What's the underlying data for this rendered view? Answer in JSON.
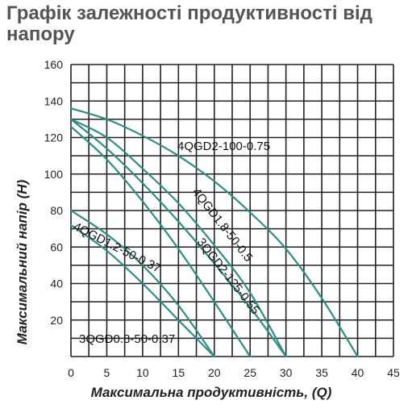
{
  "chart_data": {
    "type": "line",
    "title": "Графік залежності продуктивності від напору",
    "xlabel": "Максимальна продуктивність, (Q)",
    "ylabel": "Максимальний напір (Н)",
    "xlim": [
      0,
      45
    ],
    "ylim": [
      0,
      160
    ],
    "xticks": [
      0,
      5,
      10,
      15,
      20,
      25,
      30,
      35,
      40,
      45
    ],
    "yticks": [
      20,
      40,
      60,
      80,
      100,
      120,
      140,
      160
    ],
    "grid": true,
    "colors": {
      "curve": "#2a8f85",
      "grid": "#222222",
      "title": "#555555"
    },
    "series": [
      {
        "name": "4QGD2-100-0.75",
        "x": [
          0,
          5,
          10,
          15,
          20,
          25,
          30,
          35,
          40
        ],
        "y": [
          136,
          130,
          121,
          110,
          96,
          79,
          59,
          32,
          0
        ]
      },
      {
        "name": "4QGD1.8-50-0.5",
        "x": [
          0,
          5,
          10,
          15,
          20,
          25,
          30
        ],
        "y": [
          130,
          120,
          103,
          84,
          61,
          35,
          0
        ]
      },
      {
        "name": "3QGD2-125-0.55",
        "x": [
          0,
          5,
          10,
          15,
          20,
          25,
          30
        ],
        "y": [
          130,
          114,
          95,
          74,
          51,
          27,
          0
        ]
      },
      {
        "name": "4QGD1.2-50-0.37",
        "x": [
          0,
          5,
          10,
          15,
          20,
          25
        ],
        "y": [
          126,
          108,
          85,
          59,
          30,
          0
        ]
      },
      {
        "name": "",
        "x": [
          0,
          5,
          10,
          15,
          20
        ],
        "y": [
          80,
          67,
          50,
          28,
          0
        ]
      },
      {
        "name": "3QGD0.8-50-0.37",
        "x": [
          0,
          5,
          10,
          15,
          20
        ],
        "y": [
          72,
          58,
          40,
          20,
          0
        ]
      }
    ]
  }
}
